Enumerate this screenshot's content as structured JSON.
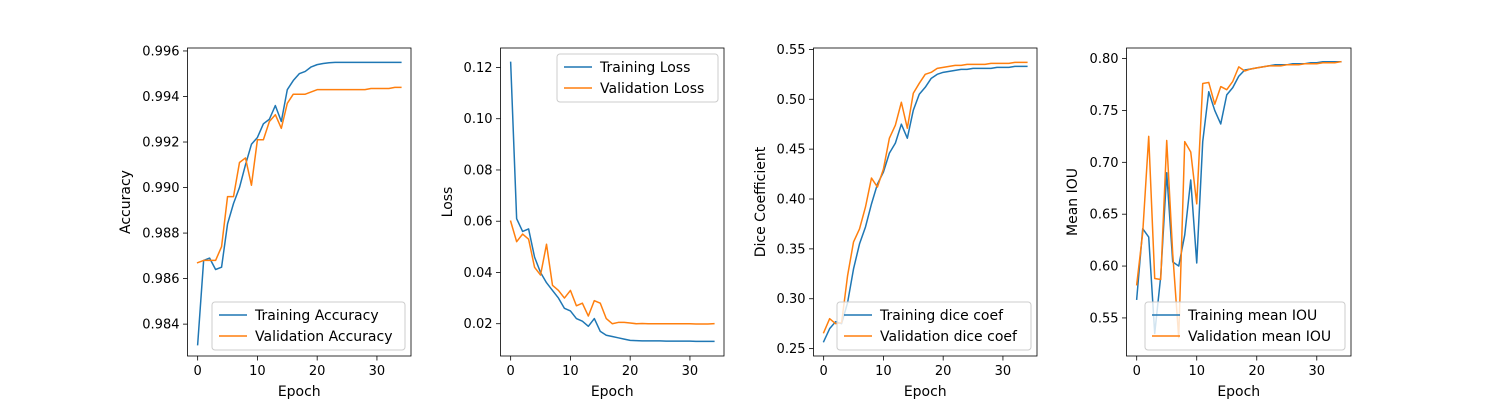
{
  "chart_data": [
    {
      "type": "line",
      "xlabel": "Epoch",
      "ylabel": "Accuracy",
      "xlim": [
        -1.7,
        35.7
      ],
      "ylim": [
        0.9826,
        0.99613
      ],
      "xticks": [
        0,
        10,
        20,
        30
      ],
      "yticks": [
        0.984,
        0.986,
        0.988,
        0.99,
        0.992,
        0.994,
        0.996
      ],
      "ytick_labels": [
        "0.984",
        "0.986",
        "0.988",
        "0.990",
        "0.992",
        "0.994",
        "0.996"
      ],
      "legend_position": "lower-right",
      "grid": false,
      "series": [
        {
          "name": "Training Accuracy",
          "color": "#1f77b4",
          "values": [
            0.9831,
            0.9868,
            0.9869,
            0.9864,
            0.9865,
            0.9884,
            0.9893,
            0.99,
            0.991,
            0.9919,
            0.9922,
            0.9928,
            0.993,
            0.9936,
            0.9929,
            0.9943,
            0.9947,
            0.995,
            0.9951,
            0.9953,
            0.9954,
            0.99545,
            0.99548,
            0.9955,
            0.9955,
            0.9955,
            0.9955,
            0.9955,
            0.9955,
            0.9955,
            0.9955,
            0.9955,
            0.9955,
            0.9955,
            0.9955
          ]
        },
        {
          "name": "Validation Accuracy",
          "color": "#ff7f0e",
          "values": [
            0.9867,
            0.9868,
            0.9868,
            0.9868,
            0.9874,
            0.9896,
            0.9896,
            0.9911,
            0.9913,
            0.9901,
            0.9921,
            0.9921,
            0.9929,
            0.9932,
            0.9926,
            0.9937,
            0.9941,
            0.9941,
            0.9941,
            0.9942,
            0.9943,
            0.9943,
            0.9943,
            0.9943,
            0.9943,
            0.9943,
            0.9943,
            0.9943,
            0.9943,
            0.99435,
            0.99435,
            0.99435,
            0.99435,
            0.9944,
            0.9944
          ]
        }
      ]
    },
    {
      "type": "line",
      "xlabel": "Epoch",
      "ylabel": "Loss",
      "xlim": [
        -1.7,
        35.7
      ],
      "ylim": [
        0.0074,
        0.1276
      ],
      "xticks": [
        0,
        10,
        20,
        30
      ],
      "yticks": [
        0.02,
        0.04,
        0.06,
        0.08,
        0.1,
        0.12
      ],
      "ytick_labels": [
        "0.02",
        "0.04",
        "0.06",
        "0.08",
        "0.10",
        "0.12"
      ],
      "legend_position": "upper-right",
      "grid": false,
      "series": [
        {
          "name": "Training Loss",
          "color": "#1f77b4",
          "values": [
            0.122,
            0.061,
            0.056,
            0.057,
            0.046,
            0.04,
            0.036,
            0.033,
            0.03,
            0.026,
            0.025,
            0.022,
            0.021,
            0.019,
            0.022,
            0.017,
            0.0155,
            0.015,
            0.0145,
            0.014,
            0.0135,
            0.0134,
            0.0133,
            0.0133,
            0.0133,
            0.0133,
            0.0132,
            0.0132,
            0.0132,
            0.0132,
            0.0132,
            0.0131,
            0.0131,
            0.0131,
            0.0131
          ]
        },
        {
          "name": "Validation Loss",
          "color": "#ff7f0e",
          "values": [
            0.06,
            0.052,
            0.055,
            0.053,
            0.042,
            0.039,
            0.051,
            0.035,
            0.033,
            0.03,
            0.033,
            0.027,
            0.028,
            0.023,
            0.029,
            0.028,
            0.022,
            0.02,
            0.0205,
            0.0205,
            0.0203,
            0.02,
            0.0201,
            0.02,
            0.02,
            0.02,
            0.02,
            0.02,
            0.02,
            0.02,
            0.02,
            0.0199,
            0.0199,
            0.0199,
            0.02
          ]
        }
      ]
    },
    {
      "type": "line",
      "xlabel": "Epoch",
      "ylabel": "Dice Coefficient",
      "xlim": [
        -1.7,
        35.7
      ],
      "ylim": [
        0.2426,
        0.5514
      ],
      "xticks": [
        0,
        10,
        20,
        30
      ],
      "yticks": [
        0.25,
        0.3,
        0.35,
        0.4,
        0.45,
        0.5,
        0.55
      ],
      "ytick_labels": [
        "0.25",
        "0.30",
        "0.35",
        "0.40",
        "0.45",
        "0.50",
        "0.55"
      ],
      "legend_position": "lower-right",
      "grid": false,
      "series": [
        {
          "name": "Training dice coef",
          "color": "#1f77b4",
          "values": [
            0.257,
            0.27,
            0.277,
            0.275,
            0.296,
            0.33,
            0.355,
            0.372,
            0.395,
            0.415,
            0.427,
            0.446,
            0.456,
            0.475,
            0.461,
            0.489,
            0.505,
            0.512,
            0.521,
            0.525,
            0.527,
            0.528,
            0.529,
            0.53,
            0.53,
            0.531,
            0.531,
            0.531,
            0.531,
            0.532,
            0.532,
            0.532,
            0.533,
            0.533,
            0.533
          ]
        },
        {
          "name": "Validation dice coef",
          "color": "#ff7f0e",
          "values": [
            0.266,
            0.28,
            0.275,
            0.276,
            0.323,
            0.357,
            0.37,
            0.392,
            0.421,
            0.412,
            0.43,
            0.461,
            0.474,
            0.497,
            0.471,
            0.506,
            0.516,
            0.525,
            0.527,
            0.531,
            0.532,
            0.533,
            0.534,
            0.534,
            0.535,
            0.535,
            0.535,
            0.535,
            0.536,
            0.536,
            0.536,
            0.536,
            0.537,
            0.537,
            0.537
          ]
        }
      ]
    },
    {
      "type": "line",
      "xlabel": "Epoch",
      "ylabel": "Mean IOU",
      "xlim": [
        -1.7,
        35.7
      ],
      "ylim": [
        0.5133,
        0.8102
      ],
      "xticks": [
        0,
        10,
        20,
        30
      ],
      "yticks": [
        0.55,
        0.6,
        0.65,
        0.7,
        0.75,
        0.8
      ],
      "ytick_labels": [
        "0.55",
        "0.60",
        "0.65",
        "0.70",
        "0.75",
        "0.80"
      ],
      "legend_position": "lower-right",
      "grid": false,
      "series": [
        {
          "name": "Training mean IOU",
          "color": "#1f77b4",
          "values": [
            0.568,
            0.636,
            0.628,
            0.535,
            0.59,
            0.69,
            0.604,
            0.6,
            0.63,
            0.683,
            0.603,
            0.72,
            0.768,
            0.75,
            0.737,
            0.765,
            0.772,
            0.783,
            0.789,
            0.79,
            0.791,
            0.792,
            0.793,
            0.794,
            0.794,
            0.794,
            0.795,
            0.795,
            0.795,
            0.796,
            0.796,
            0.797,
            0.797,
            0.797,
            0.797
          ]
        },
        {
          "name": "Validation mean IOU",
          "color": "#ff7f0e",
          "values": [
            0.582,
            0.632,
            0.725,
            0.588,
            0.587,
            0.721,
            0.612,
            0.531,
            0.72,
            0.71,
            0.66,
            0.776,
            0.777,
            0.756,
            0.773,
            0.77,
            0.778,
            0.792,
            0.788,
            0.79,
            0.791,
            0.792,
            0.793,
            0.793,
            0.793,
            0.794,
            0.794,
            0.794,
            0.795,
            0.795,
            0.795,
            0.796,
            0.796,
            0.796,
            0.797
          ]
        }
      ]
    }
  ]
}
